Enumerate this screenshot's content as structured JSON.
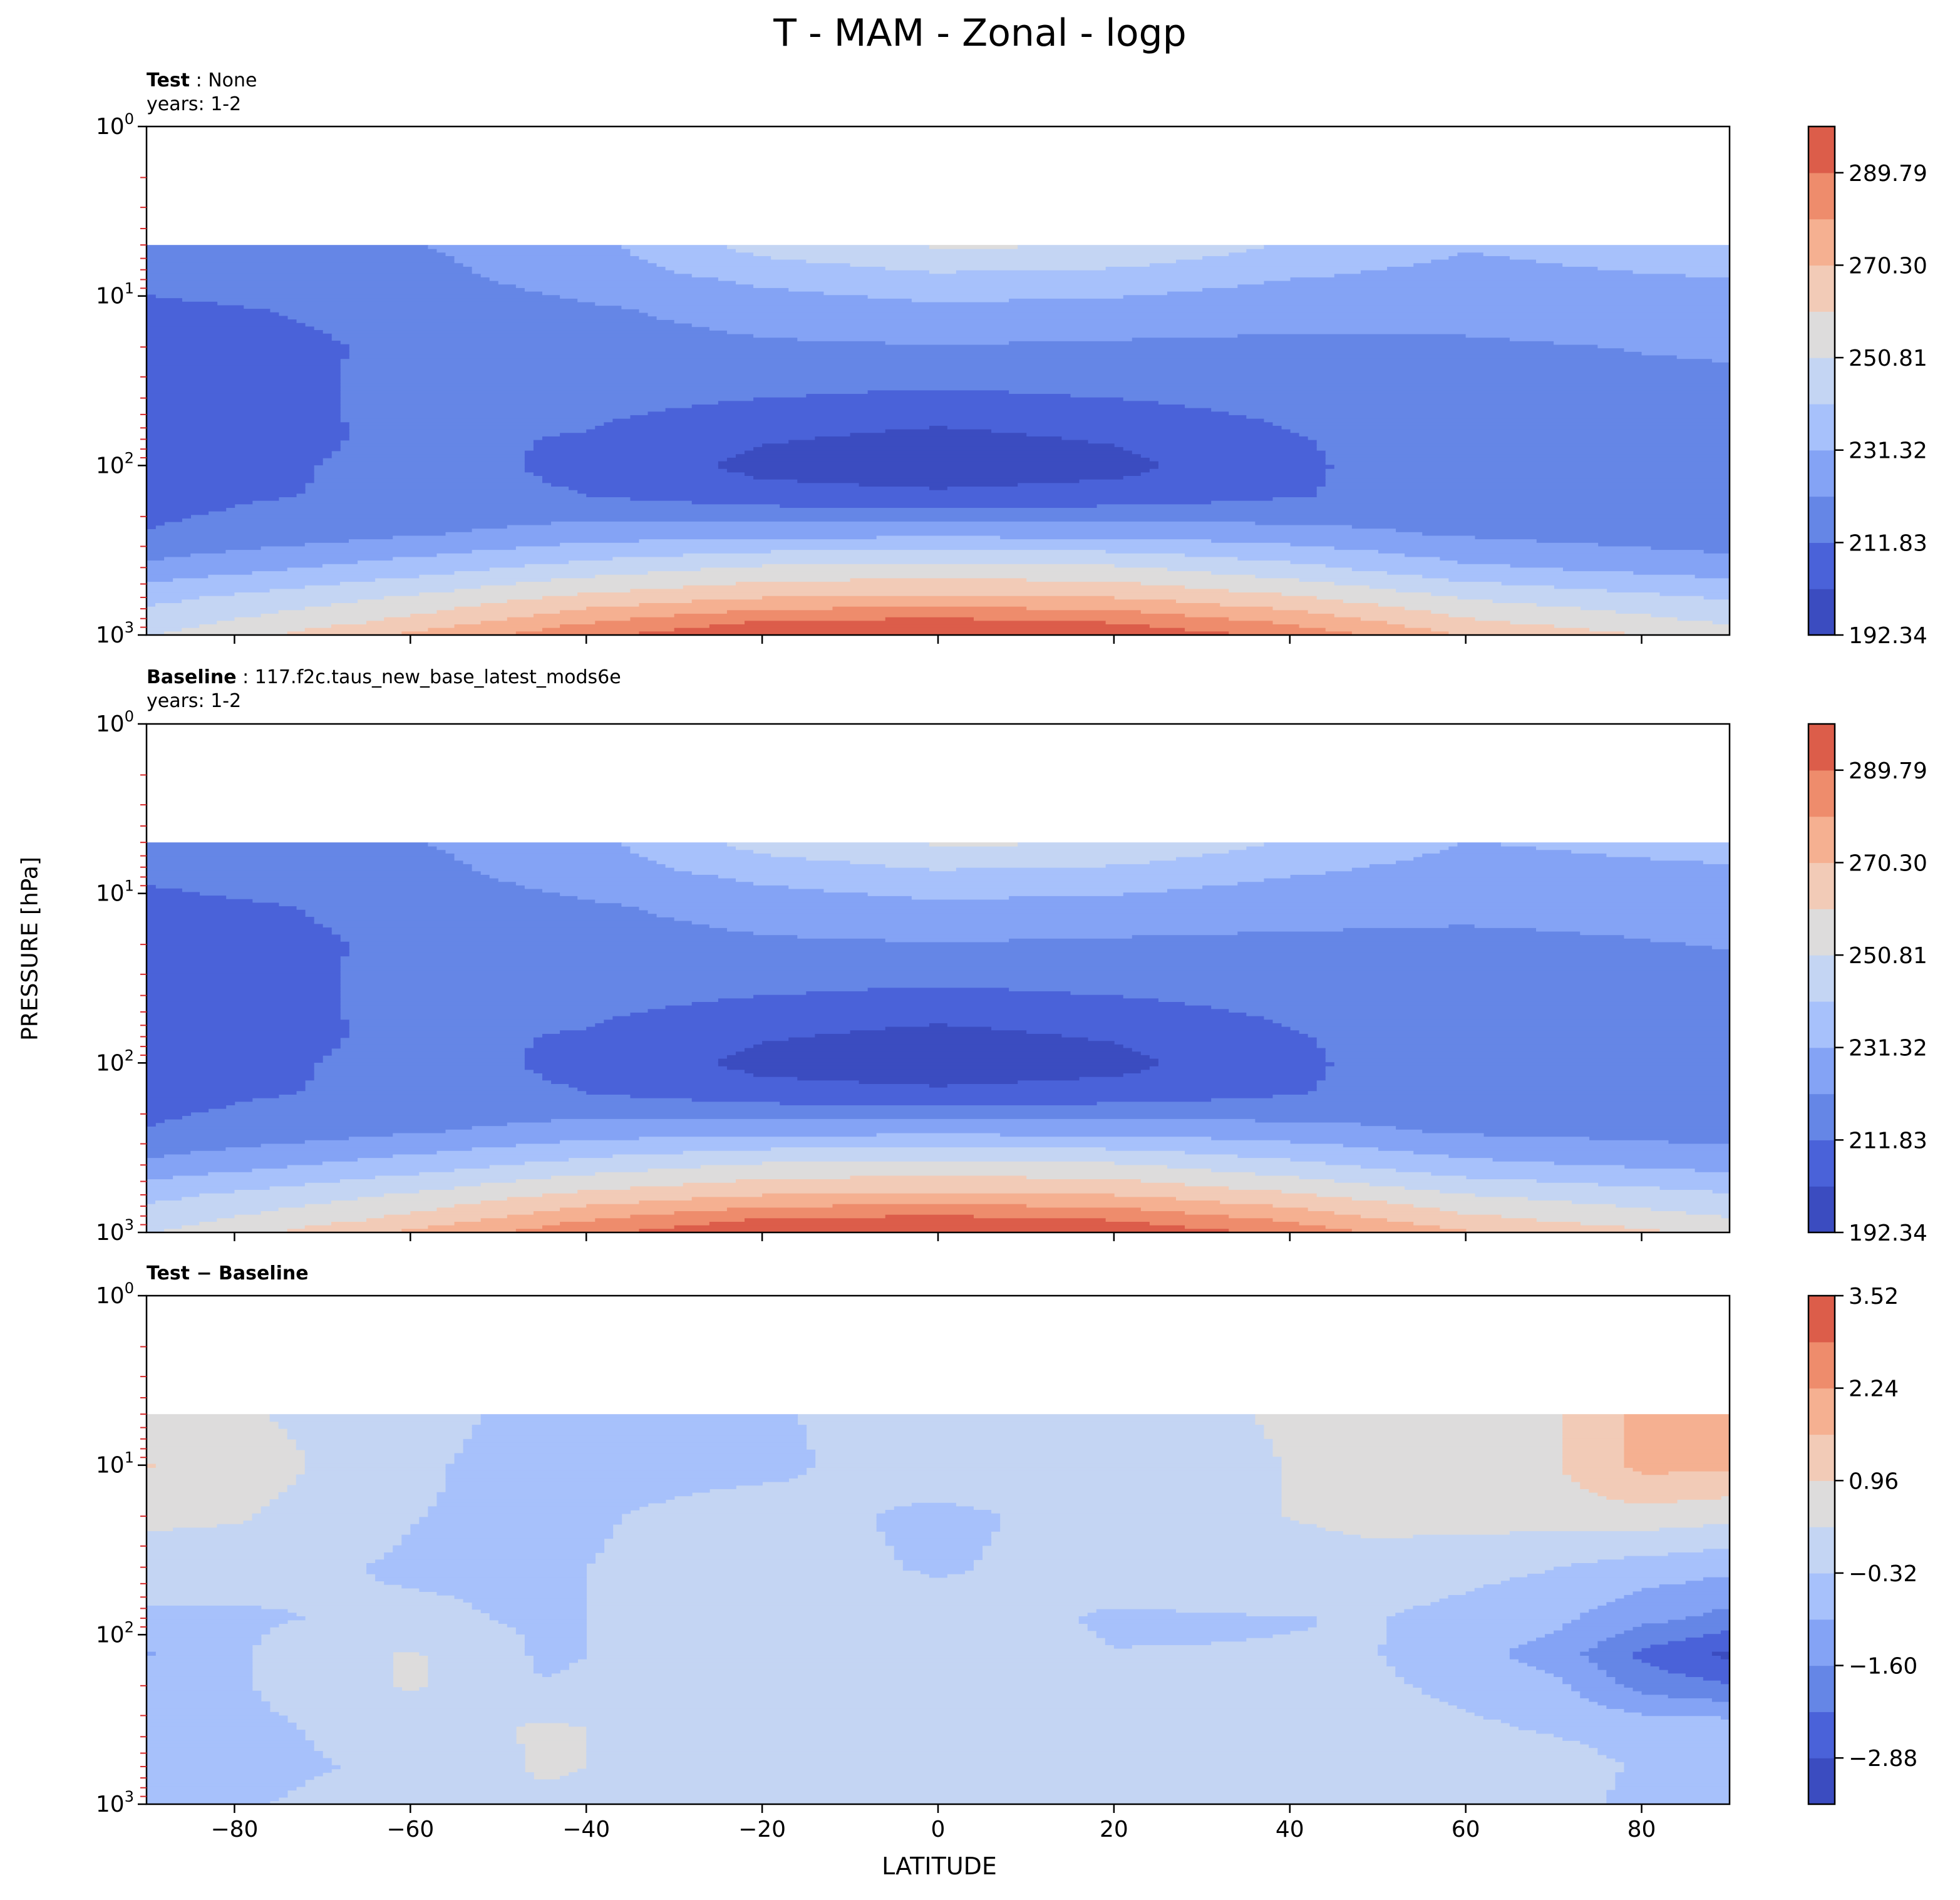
{
  "figure_title": "T - MAM - Zonal - logp",
  "ylabel": "PRESSURE [hPa]",
  "xlabel": "LATITUDE",
  "colors": {
    "coolwarm": [
      "#3b4cc0",
      "#4a62d9",
      "#6586e6",
      "#84a3f5",
      "#a7c1fb",
      "#c4d5f3",
      "#dddcdc",
      "#f2cbb7",
      "#f5b091",
      "#ee8c6c",
      "#dc5d4a",
      "#c32f2f"
    ]
  },
  "panels": [
    {
      "label_bold": "Test",
      "label_rest": " : None",
      "subtitle": "years: 1-2",
      "colorbar_ticks": [
        "192.34",
        "211.83",
        "231.32",
        "250.81",
        "270.30",
        "289.79"
      ]
    },
    {
      "label_bold": "Baseline",
      "label_rest": " : 117.f2c.taus_new_base_latest_mods6e",
      "subtitle": "years: 1-2",
      "colorbar_ticks": [
        "192.34",
        "211.83",
        "231.32",
        "250.81",
        "270.30",
        "289.79"
      ]
    },
    {
      "label_bold": "Test − Baseline",
      "label_rest": "",
      "subtitle": "",
      "colorbar_ticks": [
        "−2.88",
        "−1.60",
        "−0.32",
        "0.96",
        "2.24",
        "3.52"
      ]
    }
  ],
  "chart_data": [
    {
      "type": "contourf",
      "panel": "Test",
      "title": "Test : None",
      "subtitle": "years: 1-2",
      "xlabel": "LATITUDE",
      "ylabel": "PRESSURE [hPa]",
      "xlim": [
        -90,
        90
      ],
      "ylim": [
        1000,
        1
      ],
      "yscale": "log",
      "x_ticks": [
        -80,
        -60,
        -40,
        -20,
        0,
        20,
        40,
        60,
        80
      ],
      "y_ticks": [
        "10^0",
        "10^1",
        "10^2",
        "10^3"
      ],
      "data_top_hPa": 5,
      "colorbar": {
        "levels": [
          192.34,
          202.09,
          211.83,
          221.58,
          231.32,
          241.07,
          250.81,
          260.56,
          270.3,
          280.05,
          289.79,
          299.54
        ],
        "tick_labels": [
          "192.34",
          "211.83",
          "231.32",
          "250.81",
          "270.30",
          "289.79"
        ]
      },
      "rows": [
        {
          "p": 5,
          "lat": [
            -90,
            -60,
            -40,
            -20,
            0,
            20,
            40,
            60,
            90
          ],
          "v": [
            218,
            221,
            228,
            245,
            252,
            251,
            240,
            232,
            238
          ]
        },
        {
          "p": 8,
          "lat": [
            -90,
            -60,
            -40,
            -20,
            0,
            20,
            40,
            60,
            90
          ],
          "v": [
            214,
            218,
            226,
            233,
            238,
            236,
            231,
            228,
            231
          ]
        },
        {
          "p": 12,
          "lat": [
            -90,
            -60,
            -40,
            -20,
            0,
            20,
            40,
            60,
            90
          ],
          "v": [
            210,
            214,
            220,
            226,
            229,
            228,
            226,
            225,
            227
          ]
        },
        {
          "p": 20,
          "lat": [
            -90,
            -60,
            -40,
            -20,
            0,
            20,
            40,
            60,
            90
          ],
          "v": [
            208,
            213,
            217,
            220,
            221,
            220,
            219,
            220,
            223
          ]
        },
        {
          "p": 35,
          "lat": [
            -90,
            -60,
            -40,
            -20,
            0,
            20,
            40,
            60,
            90
          ],
          "v": [
            206,
            214,
            216,
            214,
            212,
            214,
            216,
            219,
            219
          ]
        },
        {
          "p": 70,
          "lat": [
            -90,
            -60,
            -40,
            -20,
            0,
            20,
            40,
            60,
            90
          ],
          "v": [
            205,
            214,
            211,
            203,
            199,
            203,
            211,
            218,
            217
          ]
        },
        {
          "p": 100,
          "lat": [
            -90,
            -60,
            -40,
            -20,
            0,
            20,
            40,
            60,
            90
          ],
          "v": [
            206,
            215,
            210,
            199,
            196,
            199,
            210,
            218,
            217
          ]
        },
        {
          "p": 150,
          "lat": [
            -90,
            -60,
            -40,
            -20,
            0,
            20,
            40,
            60,
            90
          ],
          "v": [
            209,
            214,
            212,
            206,
            204,
            206,
            211,
            217,
            217
          ]
        },
        {
          "p": 250,
          "lat": [
            -90,
            -60,
            -40,
            -20,
            0,
            20,
            40,
            60,
            90
          ],
          "v": [
            212,
            220,
            226,
            228,
            228,
            228,
            225,
            220,
            215
          ]
        },
        {
          "p": 400,
          "lat": [
            -90,
            -60,
            -40,
            -20,
            0,
            20,
            40,
            60,
            90
          ],
          "v": [
            224,
            236,
            245,
            252,
            254,
            252,
            244,
            233,
            226
          ]
        },
        {
          "p": 600,
          "lat": [
            -90,
            -60,
            -40,
            -20,
            0,
            20,
            40,
            60,
            90
          ],
          "v": [
            238,
            252,
            263,
            270,
            272,
            270,
            262,
            250,
            240
          ]
        },
        {
          "p": 850,
          "lat": [
            -90,
            -60,
            -40,
            -20,
            0,
            20,
            40,
            60,
            90
          ],
          "v": [
            246,
            264,
            280,
            291,
            294,
            290,
            279,
            263,
            250
          ]
        },
        {
          "p": 1000,
          "lat": [
            -90,
            -60,
            -40,
            -20,
            0,
            20,
            40,
            60,
            90
          ],
          "v": [
            250,
            272,
            288,
            298,
            300,
            298,
            287,
            270,
            256
          ]
        }
      ]
    },
    {
      "type": "contourf",
      "panel": "Baseline",
      "title": "Baseline : 117.f2c.taus_new_base_latest_mods6e",
      "subtitle": "years: 1-2",
      "xlabel": "LATITUDE",
      "ylabel": "PRESSURE [hPa]",
      "xlim": [
        -90,
        90
      ],
      "ylim": [
        1000,
        1
      ],
      "yscale": "log",
      "x_ticks": [
        -80,
        -60,
        -40,
        -20,
        0,
        20,
        40,
        60,
        80
      ],
      "y_ticks": [
        "10^0",
        "10^1",
        "10^2",
        "10^3"
      ],
      "data_top_hPa": 5,
      "colorbar": {
        "levels": [
          192.34,
          202.09,
          211.83,
          221.58,
          231.32,
          241.07,
          250.81,
          260.56,
          270.3,
          280.05,
          289.79,
          299.54
        ],
        "tick_labels": [
          "192.34",
          "211.83",
          "231.32",
          "250.81",
          "270.30",
          "289.79"
        ]
      },
      "rows": [
        {
          "p": 5,
          "lat": [
            -90,
            -60,
            -40,
            -20,
            0,
            20,
            40,
            60,
            90
          ],
          "v": [
            217,
            221,
            228,
            245,
            252,
            251,
            240,
            231,
            235
          ]
        },
        {
          "p": 8,
          "lat": [
            -90,
            -60,
            -40,
            -20,
            0,
            20,
            40,
            60,
            90
          ],
          "v": [
            213,
            218,
            226,
            233,
            238,
            236,
            231,
            227,
            229
          ]
        },
        {
          "p": 12,
          "lat": [
            -90,
            -60,
            -40,
            -20,
            0,
            20,
            40,
            60,
            90
          ],
          "v": [
            209,
            214,
            220,
            226,
            229,
            228,
            226,
            224,
            225
          ]
        },
        {
          "p": 20,
          "lat": [
            -90,
            -60,
            -40,
            -20,
            0,
            20,
            40,
            60,
            90
          ],
          "v": [
            208,
            213,
            217,
            220,
            221,
            220,
            219,
            219,
            222
          ]
        },
        {
          "p": 35,
          "lat": [
            -90,
            -60,
            -40,
            -20,
            0,
            20,
            40,
            60,
            90
          ],
          "v": [
            206,
            214,
            216,
            214,
            212,
            214,
            216,
            219,
            219
          ]
        },
        {
          "p": 70,
          "lat": [
            -90,
            -60,
            -40,
            -20,
            0,
            20,
            40,
            60,
            90
          ],
          "v": [
            205,
            214,
            211,
            203,
            199,
            203,
            211,
            218,
            219
          ]
        },
        {
          "p": 100,
          "lat": [
            -90,
            -60,
            -40,
            -20,
            0,
            20,
            40,
            60,
            90
          ],
          "v": [
            206,
            215,
            210,
            199,
            196,
            199,
            210,
            218,
            219
          ]
        },
        {
          "p": 150,
          "lat": [
            -90,
            -60,
            -40,
            -20,
            0,
            20,
            40,
            60,
            90
          ],
          "v": [
            209,
            214,
            212,
            206,
            204,
            206,
            211,
            218,
            220
          ]
        },
        {
          "p": 250,
          "lat": [
            -90,
            -60,
            -40,
            -20,
            0,
            20,
            40,
            60,
            90
          ],
          "v": [
            212,
            220,
            226,
            228,
            228,
            228,
            225,
            220,
            217
          ]
        },
        {
          "p": 400,
          "lat": [
            -90,
            -60,
            -40,
            -20,
            0,
            20,
            40,
            60,
            90
          ],
          "v": [
            224,
            236,
            245,
            252,
            254,
            252,
            244,
            234,
            228
          ]
        },
        {
          "p": 600,
          "lat": [
            -90,
            -60,
            -40,
            -20,
            0,
            20,
            40,
            60,
            90
          ],
          "v": [
            238,
            252,
            263,
            270,
            272,
            270,
            262,
            251,
            242
          ]
        },
        {
          "p": 850,
          "lat": [
            -90,
            -60,
            -40,
            -20,
            0,
            20,
            40,
            60,
            90
          ],
          "v": [
            246,
            264,
            280,
            291,
            294,
            290,
            279,
            264,
            252
          ]
        },
        {
          "p": 1000,
          "lat": [
            -90,
            -60,
            -40,
            -20,
            0,
            20,
            40,
            60,
            90
          ],
          "v": [
            250,
            272,
            288,
            298,
            300,
            298,
            287,
            271,
            258
          ]
        }
      ]
    },
    {
      "type": "contourf",
      "panel": "Test − Baseline",
      "title": "Test − Baseline",
      "xlabel": "LATITUDE",
      "ylabel": "PRESSURE [hPa]",
      "xlim": [
        -90,
        90
      ],
      "ylim": [
        1000,
        1
      ],
      "yscale": "log",
      "x_ticks": [
        -80,
        -60,
        -40,
        -20,
        0,
        20,
        40,
        60,
        80
      ],
      "y_ticks": [
        "10^0",
        "10^1",
        "10^2",
        "10^3"
      ],
      "data_top_hPa": 5,
      "colorbar": {
        "levels": [
          -3.52,
          -2.88,
          -2.24,
          -1.6,
          -0.96,
          -0.32,
          0.32,
          0.96,
          1.6,
          2.24,
          2.88,
          3.52
        ],
        "tick_labels": [
          "−2.88",
          "−1.60",
          "−0.32",
          "0.96",
          "2.24",
          "3.52"
        ]
      },
      "rows": [
        {
          "p": 5,
          "lat": [
            -90,
            -80,
            -60,
            -45,
            -20,
            0,
            20,
            50,
            70,
            80,
            90
          ],
          "v": [
            0.5,
            0.4,
            -0.1,
            -0.5,
            -0.4,
            0.0,
            0.0,
            0.6,
            0.9,
            1.8,
            1.6
          ]
        },
        {
          "p": 10,
          "lat": [
            -90,
            -80,
            -60,
            -45,
            -20,
            0,
            20,
            50,
            70,
            80,
            90
          ],
          "v": [
            1.0,
            0.7,
            -0.2,
            -0.6,
            -0.5,
            0.1,
            0.0,
            0.5,
            0.9,
            1.8,
            1.7
          ]
        },
        {
          "p": 20,
          "lat": [
            -90,
            -80,
            -60,
            -45,
            -20,
            0,
            20,
            50,
            70,
            80,
            90
          ],
          "v": [
            0.5,
            0.4,
            -0.3,
            -0.5,
            0.0,
            -0.5,
            0.0,
            0.5,
            0.6,
            0.7,
            0.5
          ]
        },
        {
          "p": 40,
          "lat": [
            -90,
            -80,
            -60,
            -45,
            -20,
            0,
            20,
            50,
            70,
            80,
            90
          ],
          "v": [
            -0.1,
            -0.1,
            -0.4,
            -0.4,
            0.0,
            -0.4,
            0.0,
            0.1,
            -0.3,
            -0.6,
            -0.8
          ]
        },
        {
          "p": 80,
          "lat": [
            -90,
            -80,
            -60,
            -45,
            -20,
            0,
            20,
            50,
            70,
            80,
            90
          ],
          "v": [
            -0.4,
            -0.4,
            -0.2,
            -0.4,
            0.0,
            0.0,
            -0.4,
            -0.3,
            -0.8,
            -1.4,
            -1.8
          ]
        },
        {
          "p": 130,
          "lat": [
            -90,
            -80,
            -60,
            -45,
            -20,
            0,
            20,
            50,
            70,
            80,
            90
          ],
          "v": [
            -1.0,
            -0.4,
            0.4,
            -0.4,
            0.0,
            0.0,
            -0.3,
            -0.3,
            -1.2,
            -2.4,
            -3.0
          ]
        },
        {
          "p": 200,
          "lat": [
            -90,
            -80,
            -60,
            -45,
            -20,
            0,
            20,
            50,
            70,
            80,
            90
          ],
          "v": [
            -0.5,
            -0.4,
            0.4,
            -0.3,
            0.0,
            0.0,
            0.0,
            -0.2,
            -0.8,
            -1.8,
            -2.2
          ]
        },
        {
          "p": 350,
          "lat": [
            -90,
            -80,
            -60,
            -45,
            -20,
            0,
            20,
            50,
            70,
            80,
            90
          ],
          "v": [
            -0.5,
            -0.5,
            0.0,
            0.4,
            0.0,
            0.0,
            0.0,
            0.0,
            -0.4,
            -0.6,
            -0.6
          ]
        },
        {
          "p": 600,
          "lat": [
            -90,
            -80,
            -60,
            -45,
            -20,
            0,
            20,
            50,
            70,
            80,
            90
          ],
          "v": [
            -0.6,
            -0.5,
            -0.2,
            0.4,
            0.0,
            0.0,
            0.0,
            0.0,
            0.0,
            -0.4,
            -0.4
          ]
        },
        {
          "p": 1000,
          "lat": [
            -90,
            -80,
            -60,
            -45,
            -20,
            0,
            20,
            50,
            70,
            80,
            90
          ],
          "v": [
            -0.4,
            -0.4,
            0.0,
            0.2,
            0.0,
            0.0,
            0.0,
            0.0,
            0.1,
            -0.6,
            -0.6
          ]
        }
      ]
    }
  ]
}
